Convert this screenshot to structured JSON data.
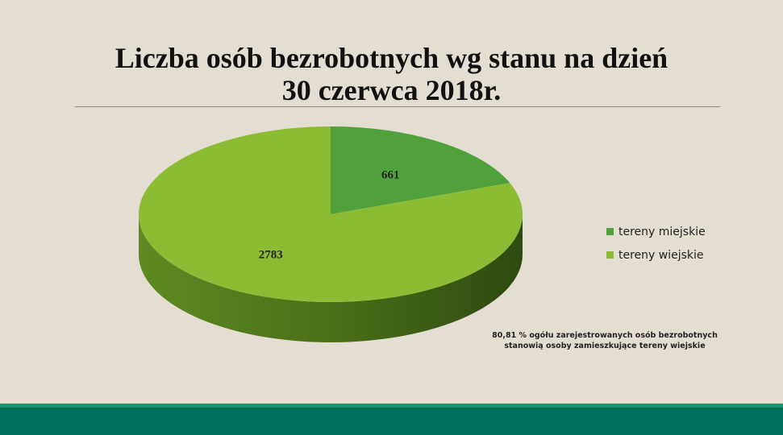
{
  "chart_data": {
    "type": "pie",
    "title": "Liczba osób bezrobotnych wg stanu na dzień 30 czerwca 2018r.",
    "title_lines": [
      "Liczba osób bezrobotnych wg stanu na dzień",
      "30 czerwca 2018r."
    ],
    "three_d": true,
    "legend_position": "right",
    "slices": [
      {
        "name": "tereny miejskie",
        "value": 661,
        "label": "661",
        "color": "#50a03c"
      },
      {
        "name": "tereny wiejskie",
        "value": 2783,
        "label": "2783",
        "color": "#8cbc34"
      }
    ],
    "annotation": "80,81 % ogółu zarejestrowanych osób bezrobotnych stanowią osoby zamieszkujące tereny wiejskie"
  },
  "colors": {
    "background": "#e4ddd2",
    "footer": "#01705a"
  }
}
